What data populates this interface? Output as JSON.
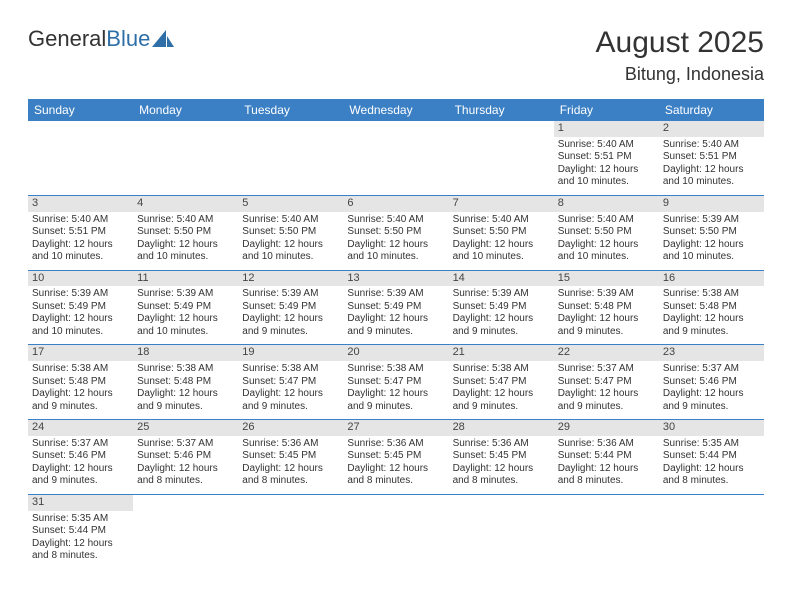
{
  "logo": {
    "text1": "General",
    "text2": "Blue"
  },
  "title": "August 2025",
  "location": "Bitung, Indonesia",
  "colors": {
    "header_bg": "#3b7fc4",
    "header_text": "#ffffff",
    "daynum_bg": "#e5e5e5",
    "border": "#3b7fc4",
    "logo_accent": "#2f6fa7"
  },
  "weekdays": [
    "Sunday",
    "Monday",
    "Tuesday",
    "Wednesday",
    "Thursday",
    "Friday",
    "Saturday"
  ],
  "weeks": [
    [
      null,
      null,
      null,
      null,
      null,
      {
        "day": "1",
        "sunrise": "Sunrise: 5:40 AM",
        "sunset": "Sunset: 5:51 PM",
        "daylight1": "Daylight: 12 hours",
        "daylight2": "and 10 minutes."
      },
      {
        "day": "2",
        "sunrise": "Sunrise: 5:40 AM",
        "sunset": "Sunset: 5:51 PM",
        "daylight1": "Daylight: 12 hours",
        "daylight2": "and 10 minutes."
      }
    ],
    [
      {
        "day": "3",
        "sunrise": "Sunrise: 5:40 AM",
        "sunset": "Sunset: 5:51 PM",
        "daylight1": "Daylight: 12 hours",
        "daylight2": "and 10 minutes."
      },
      {
        "day": "4",
        "sunrise": "Sunrise: 5:40 AM",
        "sunset": "Sunset: 5:50 PM",
        "daylight1": "Daylight: 12 hours",
        "daylight2": "and 10 minutes."
      },
      {
        "day": "5",
        "sunrise": "Sunrise: 5:40 AM",
        "sunset": "Sunset: 5:50 PM",
        "daylight1": "Daylight: 12 hours",
        "daylight2": "and 10 minutes."
      },
      {
        "day": "6",
        "sunrise": "Sunrise: 5:40 AM",
        "sunset": "Sunset: 5:50 PM",
        "daylight1": "Daylight: 12 hours",
        "daylight2": "and 10 minutes."
      },
      {
        "day": "7",
        "sunrise": "Sunrise: 5:40 AM",
        "sunset": "Sunset: 5:50 PM",
        "daylight1": "Daylight: 12 hours",
        "daylight2": "and 10 minutes."
      },
      {
        "day": "8",
        "sunrise": "Sunrise: 5:40 AM",
        "sunset": "Sunset: 5:50 PM",
        "daylight1": "Daylight: 12 hours",
        "daylight2": "and 10 minutes."
      },
      {
        "day": "9",
        "sunrise": "Sunrise: 5:39 AM",
        "sunset": "Sunset: 5:50 PM",
        "daylight1": "Daylight: 12 hours",
        "daylight2": "and 10 minutes."
      }
    ],
    [
      {
        "day": "10",
        "sunrise": "Sunrise: 5:39 AM",
        "sunset": "Sunset: 5:49 PM",
        "daylight1": "Daylight: 12 hours",
        "daylight2": "and 10 minutes."
      },
      {
        "day": "11",
        "sunrise": "Sunrise: 5:39 AM",
        "sunset": "Sunset: 5:49 PM",
        "daylight1": "Daylight: 12 hours",
        "daylight2": "and 10 minutes."
      },
      {
        "day": "12",
        "sunrise": "Sunrise: 5:39 AM",
        "sunset": "Sunset: 5:49 PM",
        "daylight1": "Daylight: 12 hours",
        "daylight2": "and 9 minutes."
      },
      {
        "day": "13",
        "sunrise": "Sunrise: 5:39 AM",
        "sunset": "Sunset: 5:49 PM",
        "daylight1": "Daylight: 12 hours",
        "daylight2": "and 9 minutes."
      },
      {
        "day": "14",
        "sunrise": "Sunrise: 5:39 AM",
        "sunset": "Sunset: 5:49 PM",
        "daylight1": "Daylight: 12 hours",
        "daylight2": "and 9 minutes."
      },
      {
        "day": "15",
        "sunrise": "Sunrise: 5:39 AM",
        "sunset": "Sunset: 5:48 PM",
        "daylight1": "Daylight: 12 hours",
        "daylight2": "and 9 minutes."
      },
      {
        "day": "16",
        "sunrise": "Sunrise: 5:38 AM",
        "sunset": "Sunset: 5:48 PM",
        "daylight1": "Daylight: 12 hours",
        "daylight2": "and 9 minutes."
      }
    ],
    [
      {
        "day": "17",
        "sunrise": "Sunrise: 5:38 AM",
        "sunset": "Sunset: 5:48 PM",
        "daylight1": "Daylight: 12 hours",
        "daylight2": "and 9 minutes."
      },
      {
        "day": "18",
        "sunrise": "Sunrise: 5:38 AM",
        "sunset": "Sunset: 5:48 PM",
        "daylight1": "Daylight: 12 hours",
        "daylight2": "and 9 minutes."
      },
      {
        "day": "19",
        "sunrise": "Sunrise: 5:38 AM",
        "sunset": "Sunset: 5:47 PM",
        "daylight1": "Daylight: 12 hours",
        "daylight2": "and 9 minutes."
      },
      {
        "day": "20",
        "sunrise": "Sunrise: 5:38 AM",
        "sunset": "Sunset: 5:47 PM",
        "daylight1": "Daylight: 12 hours",
        "daylight2": "and 9 minutes."
      },
      {
        "day": "21",
        "sunrise": "Sunrise: 5:38 AM",
        "sunset": "Sunset: 5:47 PM",
        "daylight1": "Daylight: 12 hours",
        "daylight2": "and 9 minutes."
      },
      {
        "day": "22",
        "sunrise": "Sunrise: 5:37 AM",
        "sunset": "Sunset: 5:47 PM",
        "daylight1": "Daylight: 12 hours",
        "daylight2": "and 9 minutes."
      },
      {
        "day": "23",
        "sunrise": "Sunrise: 5:37 AM",
        "sunset": "Sunset: 5:46 PM",
        "daylight1": "Daylight: 12 hours",
        "daylight2": "and 9 minutes."
      }
    ],
    [
      {
        "day": "24",
        "sunrise": "Sunrise: 5:37 AM",
        "sunset": "Sunset: 5:46 PM",
        "daylight1": "Daylight: 12 hours",
        "daylight2": "and 9 minutes."
      },
      {
        "day": "25",
        "sunrise": "Sunrise: 5:37 AM",
        "sunset": "Sunset: 5:46 PM",
        "daylight1": "Daylight: 12 hours",
        "daylight2": "and 8 minutes."
      },
      {
        "day": "26",
        "sunrise": "Sunrise: 5:36 AM",
        "sunset": "Sunset: 5:45 PM",
        "daylight1": "Daylight: 12 hours",
        "daylight2": "and 8 minutes."
      },
      {
        "day": "27",
        "sunrise": "Sunrise: 5:36 AM",
        "sunset": "Sunset: 5:45 PM",
        "daylight1": "Daylight: 12 hours",
        "daylight2": "and 8 minutes."
      },
      {
        "day": "28",
        "sunrise": "Sunrise: 5:36 AM",
        "sunset": "Sunset: 5:45 PM",
        "daylight1": "Daylight: 12 hours",
        "daylight2": "and 8 minutes."
      },
      {
        "day": "29",
        "sunrise": "Sunrise: 5:36 AM",
        "sunset": "Sunset: 5:44 PM",
        "daylight1": "Daylight: 12 hours",
        "daylight2": "and 8 minutes."
      },
      {
        "day": "30",
        "sunrise": "Sunrise: 5:35 AM",
        "sunset": "Sunset: 5:44 PM",
        "daylight1": "Daylight: 12 hours",
        "daylight2": "and 8 minutes."
      }
    ],
    [
      {
        "day": "31",
        "sunrise": "Sunrise: 5:35 AM",
        "sunset": "Sunset: 5:44 PM",
        "daylight1": "Daylight: 12 hours",
        "daylight2": "and 8 minutes."
      },
      null,
      null,
      null,
      null,
      null,
      null
    ]
  ]
}
